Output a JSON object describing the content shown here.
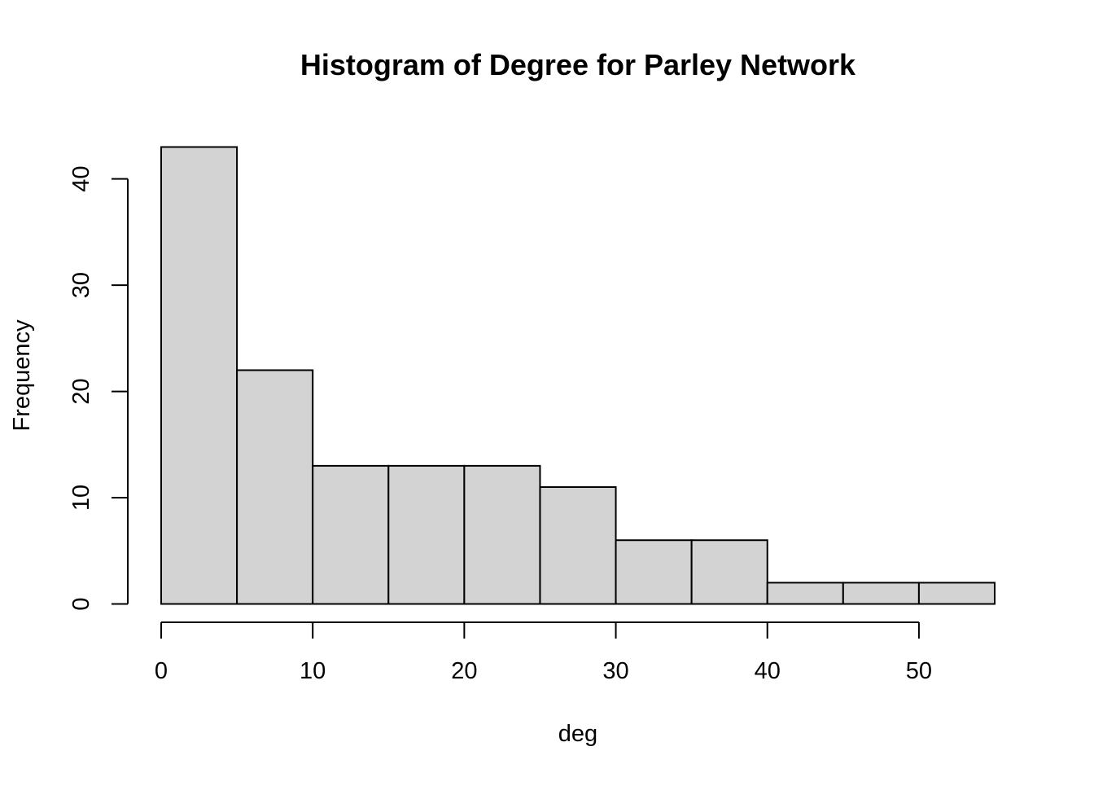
{
  "chart_data": {
    "type": "bar",
    "title": "Histogram of Degree for Parley Network",
    "xlabel": "deg",
    "ylabel": "Frequency",
    "bins": [
      {
        "from": 0,
        "to": 5,
        "count": 43
      },
      {
        "from": 5,
        "to": 10,
        "count": 22
      },
      {
        "from": 10,
        "to": 15,
        "count": 13
      },
      {
        "from": 15,
        "to": 20,
        "count": 13
      },
      {
        "from": 20,
        "to": 25,
        "count": 13
      },
      {
        "from": 25,
        "to": 30,
        "count": 11
      },
      {
        "from": 30,
        "to": 35,
        "count": 6
      },
      {
        "from": 35,
        "to": 40,
        "count": 6
      },
      {
        "from": 40,
        "to": 45,
        "count": 2
      },
      {
        "from": 45,
        "to": 50,
        "count": 2
      },
      {
        "from": 50,
        "to": 55,
        "count": 2
      }
    ],
    "xticks": [
      0,
      10,
      20,
      30,
      40,
      50
    ],
    "yticks": [
      0,
      10,
      20,
      30,
      40
    ],
    "xlim": [
      0,
      55
    ],
    "ylim": [
      0,
      43
    ],
    "grid": false,
    "colors": {
      "bar_fill": "#d3d3d3",
      "bar_stroke": "#000000",
      "axis": "#000000"
    }
  }
}
